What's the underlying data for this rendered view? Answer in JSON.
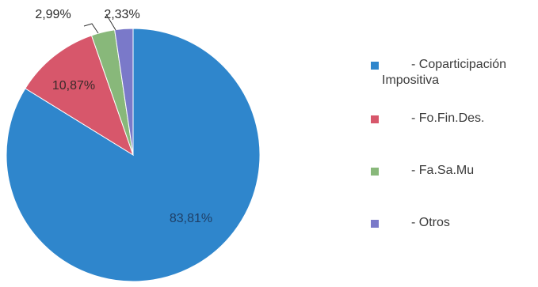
{
  "chart_data": {
    "type": "pie",
    "slices": [
      {
        "label": "Coparticipación Impositiva",
        "value": 83.81,
        "display": "83,81%",
        "color": "#2f86cc"
      },
      {
        "label": "Fo.Fin.Des.",
        "value": 10.87,
        "display": "10,87%",
        "color": "#d7576b"
      },
      {
        "label": "Fa.Sa.Mu",
        "value": 2.99,
        "display": "2,99%",
        "color": "#88b87a"
      },
      {
        "label": "Otros",
        "value": 2.33,
        "display": "2,33%",
        "color": "#7a79c9"
      }
    ],
    "legend": {
      "placement": "right",
      "items": [
        {
          "line1": "- Coparticipación",
          "line2": "Impositiva",
          "color": "#2f86cc"
        },
        {
          "line1": "- Fo.Fin.Des.",
          "line2": "",
          "color": "#d7576b"
        },
        {
          "line1": "- Fa.Sa.Mu",
          "line2": "",
          "color": "#88b87a"
        },
        {
          "line1": "- Otros",
          "line2": "",
          "color": "#7a79c9"
        }
      ]
    }
  }
}
